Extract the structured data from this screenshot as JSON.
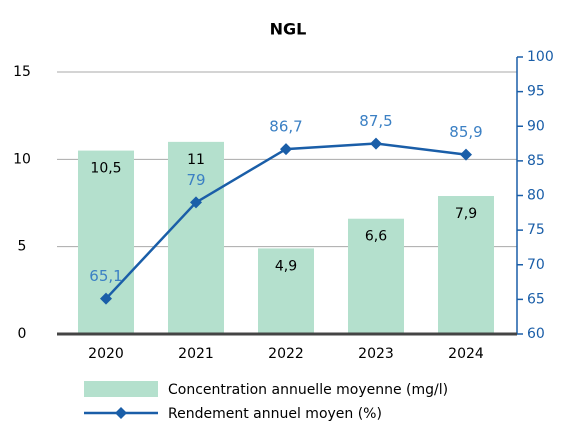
{
  "chart_data": {
    "type": "bar-line",
    "title": "NGL",
    "categories": [
      "2020",
      "2021",
      "2022",
      "2023",
      "2024"
    ],
    "series": [
      {
        "name": "Concentration annuelle moyenne (mg/l)",
        "type": "bar",
        "color": "#b4e0cd",
        "values": [
          10.5,
          11,
          4.9,
          6.6,
          7.9
        ],
        "value_labels": [
          "10,5",
          "11",
          "4,9",
          "6,6",
          "7,9"
        ]
      },
      {
        "name": "Rendement annuel moyen (%)",
        "type": "line",
        "axis": "y2",
        "color": "#1a5ea8",
        "values": [
          65.1,
          79,
          86.7,
          87.5,
          85.9
        ],
        "value_labels": [
          "65,1",
          "79",
          "86,7",
          "87,5",
          "85,9"
        ]
      }
    ],
    "ylim": [
      0,
      15
    ],
    "yticks": [
      0,
      5,
      10,
      15
    ],
    "y2lim": [
      60,
      100
    ],
    "y2ticks": [
      60,
      65,
      70,
      75,
      80,
      85,
      90,
      95,
      100
    ],
    "grid": true,
    "legend": "bottom"
  }
}
